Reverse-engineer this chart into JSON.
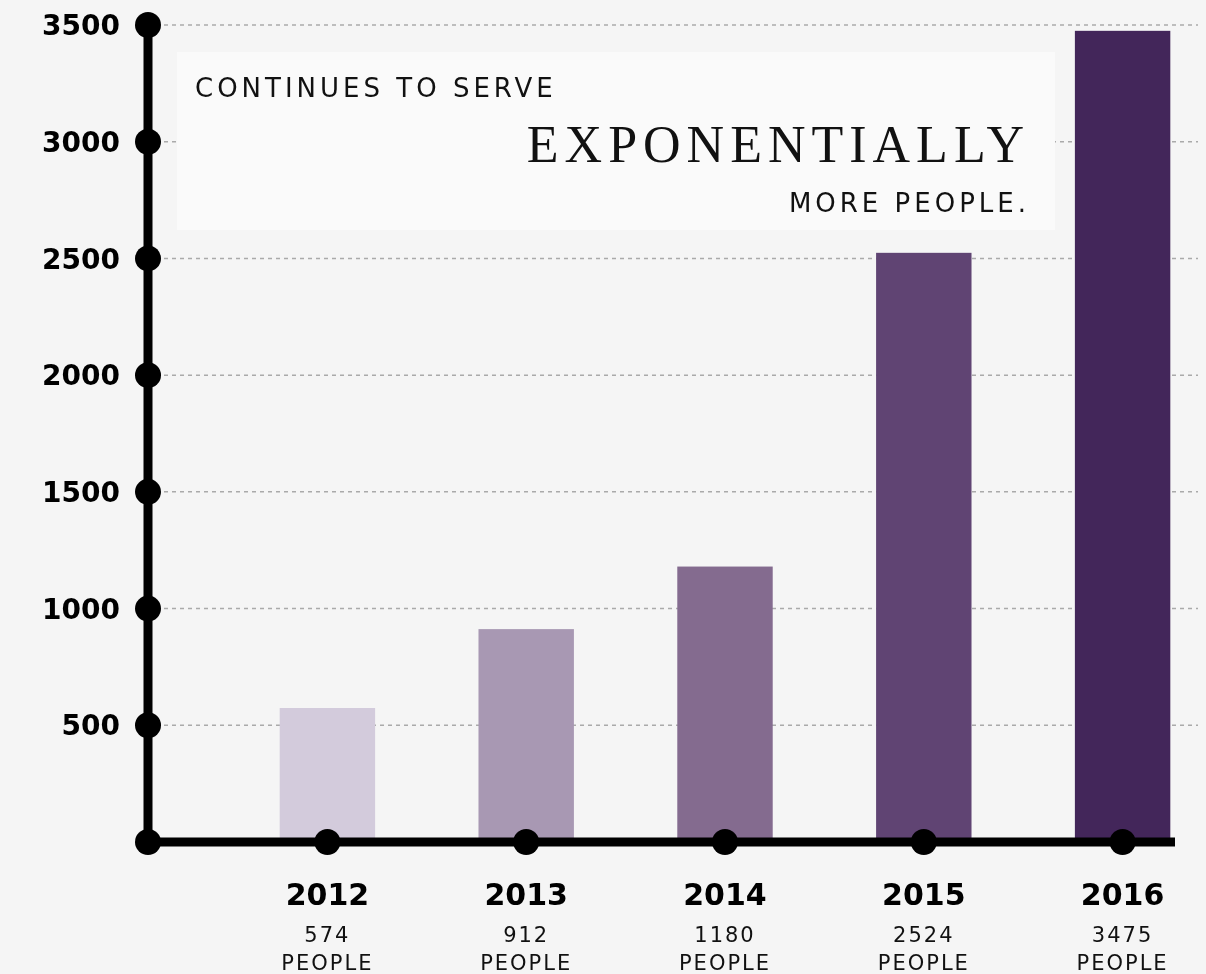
{
  "chart_data": {
    "type": "bar",
    "title": "CONTINUES TO SERVE EXPONENTIALLY MORE PEOPLE.",
    "categories": [
      "2012",
      "2013",
      "2014",
      "2015",
      "2016"
    ],
    "values": [
      574,
      912,
      1180,
      2524,
      3475
    ],
    "colors": [
      "#d3cbdc",
      "#a898b3",
      "#846b8f",
      "#604473",
      "#43265a"
    ],
    "value_labels": [
      "574 PEOPLE",
      "912 PEOPLE",
      "1180 PEOPLE",
      "2524 PEOPLE",
      "3475 PEOPLE"
    ],
    "ylim": [
      0,
      3500
    ],
    "yticks": [
      {
        "value": 0,
        "label": null
      },
      500,
      1000,
      1500,
      2000,
      2500,
      3000,
      3500
    ],
    "grid": "y"
  }
}
